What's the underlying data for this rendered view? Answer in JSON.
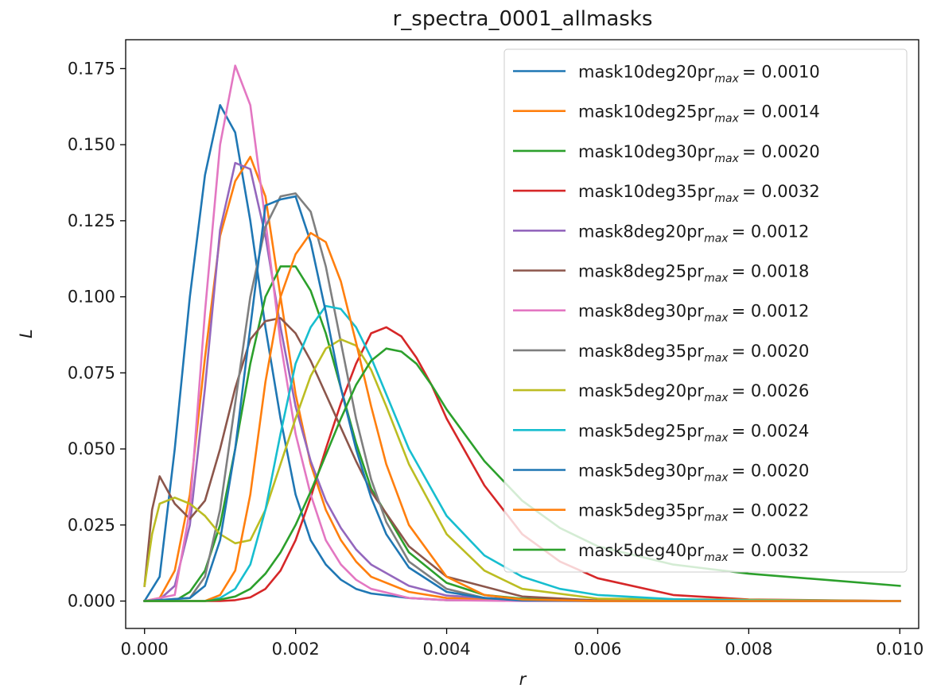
{
  "chart_data": {
    "type": "line",
    "title": "r_spectra_0001_allmasks",
    "xlabel": "r",
    "ylabel": "L",
    "xlim": [
      -0.00025,
      0.01025
    ],
    "ylim": [
      -0.009,
      0.1845
    ],
    "xticks": [
      "0.000",
      "0.002",
      "0.004",
      "0.006",
      "0.008",
      "0.010"
    ],
    "xtick_values": [
      0.0,
      0.002,
      0.004,
      0.006,
      0.008,
      0.01
    ],
    "yticks": [
      "0.000",
      "0.025",
      "0.050",
      "0.075",
      "0.100",
      "0.125",
      "0.150",
      "0.175"
    ],
    "ytick_values": [
      0.0,
      0.025,
      0.05,
      0.075,
      0.1,
      0.125,
      0.15,
      0.175
    ],
    "grid": false,
    "legend_position": "top-right",
    "series": [
      {
        "name": "mask10deg20p",
        "rmax": "= 0.0010",
        "color": "#1f77b4",
        "x": [
          0,
          0.0002,
          0.0004,
          0.0006,
          0.0008,
          0.001,
          0.0012,
          0.0014,
          0.0016,
          0.0018,
          0.002,
          0.0022,
          0.0024,
          0.0026,
          0.0028,
          0.003,
          0.0035,
          0.004,
          0.006,
          0.01
        ],
        "y": [
          0.0,
          0.008,
          0.05,
          0.1,
          0.14,
          0.163,
          0.154,
          0.125,
          0.09,
          0.06,
          0.035,
          0.02,
          0.012,
          0.007,
          0.004,
          0.0025,
          0.001,
          0.0003,
          0.0,
          0.0
        ]
      },
      {
        "name": "mask10deg25p",
        "rmax": "= 0.0014",
        "color": "#ff7f0e",
        "x": [
          0,
          0.0002,
          0.0004,
          0.0006,
          0.0008,
          0.001,
          0.0012,
          0.0014,
          0.0016,
          0.0018,
          0.002,
          0.0022,
          0.0024,
          0.0026,
          0.0028,
          0.003,
          0.0035,
          0.004,
          0.006,
          0.01
        ],
        "y": [
          0.0,
          0.001,
          0.01,
          0.035,
          0.08,
          0.12,
          0.138,
          0.146,
          0.133,
          0.1,
          0.068,
          0.045,
          0.03,
          0.02,
          0.013,
          0.008,
          0.003,
          0.001,
          0.0,
          0.0
        ]
      },
      {
        "name": "mask10deg30p",
        "rmax": "= 0.0020",
        "color": "#2ca02c",
        "x": [
          0,
          0.0004,
          0.0006,
          0.0008,
          0.001,
          0.0012,
          0.0014,
          0.0016,
          0.0018,
          0.002,
          0.0022,
          0.0024,
          0.0026,
          0.0028,
          0.003,
          0.0035,
          0.004,
          0.0045,
          0.005,
          0.006,
          0.01
        ],
        "y": [
          0.0,
          0.0,
          0.003,
          0.01,
          0.025,
          0.05,
          0.078,
          0.1,
          0.11,
          0.11,
          0.102,
          0.088,
          0.07,
          0.052,
          0.037,
          0.016,
          0.006,
          0.002,
          0.0008,
          0.0001,
          0.0
        ]
      },
      {
        "name": "mask10deg35p",
        "rmax": "= 0.0032",
        "color": "#d62728",
        "x": [
          0,
          0.0008,
          0.001,
          0.0012,
          0.0014,
          0.0016,
          0.0018,
          0.002,
          0.0022,
          0.0024,
          0.0026,
          0.0028,
          0.003,
          0.0032,
          0.0034,
          0.0036,
          0.0038,
          0.004,
          0.0045,
          0.005,
          0.0055,
          0.006,
          0.007,
          0.008,
          0.01
        ],
        "y": [
          0.0,
          0.0,
          0.0,
          0.0003,
          0.0012,
          0.004,
          0.01,
          0.02,
          0.034,
          0.05,
          0.065,
          0.078,
          0.088,
          0.09,
          0.087,
          0.08,
          0.071,
          0.06,
          0.038,
          0.022,
          0.013,
          0.0075,
          0.002,
          0.0005,
          0.0
        ]
      },
      {
        "name": "mask8deg20p",
        "rmax": "= 0.0012",
        "color": "#9467bd",
        "x": [
          0,
          0.0002,
          0.0004,
          0.0006,
          0.0008,
          0.001,
          0.0012,
          0.0014,
          0.0016,
          0.0018,
          0.002,
          0.0022,
          0.0024,
          0.0026,
          0.0028,
          0.003,
          0.0035,
          0.004,
          0.005,
          0.006,
          0.01
        ],
        "y": [
          0.0,
          0.0005,
          0.005,
          0.025,
          0.07,
          0.122,
          0.144,
          0.142,
          0.12,
          0.09,
          0.064,
          0.046,
          0.033,
          0.024,
          0.017,
          0.012,
          0.005,
          0.0018,
          0.0003,
          0.0,
          0.0
        ]
      },
      {
        "name": "mask8deg25p",
        "rmax": "= 0.0018",
        "color": "#8c564b",
        "x": [
          0,
          0.0001,
          0.0002,
          0.0004,
          0.0006,
          0.0008,
          0.001,
          0.0012,
          0.0014,
          0.0016,
          0.0018,
          0.002,
          0.0022,
          0.0024,
          0.0026,
          0.0028,
          0.003,
          0.0035,
          0.004,
          0.005,
          0.006,
          0.01
        ],
        "y": [
          0.005,
          0.03,
          0.041,
          0.032,
          0.027,
          0.033,
          0.05,
          0.07,
          0.086,
          0.092,
          0.093,
          0.088,
          0.079,
          0.068,
          0.057,
          0.046,
          0.036,
          0.018,
          0.008,
          0.0015,
          0.0002,
          0.0
        ]
      },
      {
        "name": "mask8deg30p",
        "rmax": "= 0.0012",
        "color": "#e377c2",
        "x": [
          0,
          0.0004,
          0.0006,
          0.0008,
          0.001,
          0.0012,
          0.0014,
          0.0016,
          0.0018,
          0.002,
          0.0022,
          0.0024,
          0.0026,
          0.0028,
          0.003,
          0.0035,
          0.004,
          0.005,
          0.006,
          0.01
        ],
        "y": [
          0.0,
          0.002,
          0.03,
          0.095,
          0.15,
          0.176,
          0.163,
          0.125,
          0.085,
          0.055,
          0.035,
          0.02,
          0.012,
          0.007,
          0.004,
          0.001,
          0.0003,
          0.0,
          0.0,
          0.0
        ]
      },
      {
        "name": "mask8deg35p",
        "rmax": "= 0.0020",
        "color": "#7f7f7f",
        "x": [
          0,
          0.0006,
          0.0008,
          0.001,
          0.0012,
          0.0014,
          0.0016,
          0.0018,
          0.002,
          0.0022,
          0.0024,
          0.0026,
          0.0028,
          0.003,
          0.0032,
          0.0035,
          0.004,
          0.0045,
          0.005,
          0.006,
          0.01
        ],
        "y": [
          0.0,
          0.001,
          0.008,
          0.03,
          0.065,
          0.1,
          0.123,
          0.133,
          0.134,
          0.128,
          0.11,
          0.085,
          0.06,
          0.04,
          0.026,
          0.013,
          0.004,
          0.001,
          0.0003,
          0.0,
          0.0
        ]
      },
      {
        "name": "mask5deg20p",
        "rmax": "= 0.0026",
        "color": "#bcbd22",
        "x": [
          0,
          0.0001,
          0.0002,
          0.0004,
          0.0006,
          0.0008,
          0.001,
          0.0012,
          0.0014,
          0.0016,
          0.0018,
          0.002,
          0.0022,
          0.0024,
          0.0026,
          0.0028,
          0.003,
          0.0032,
          0.0035,
          0.004,
          0.0045,
          0.005,
          0.006,
          0.01
        ],
        "y": [
          0.005,
          0.022,
          0.032,
          0.034,
          0.032,
          0.028,
          0.022,
          0.019,
          0.02,
          0.03,
          0.045,
          0.06,
          0.074,
          0.083,
          0.086,
          0.084,
          0.076,
          0.064,
          0.045,
          0.022,
          0.01,
          0.004,
          0.0008,
          0.0
        ]
      },
      {
        "name": "mask5deg25p",
        "rmax": "= 0.0024",
        "color": "#17becf",
        "x": [
          0,
          0.0008,
          0.001,
          0.0012,
          0.0014,
          0.0016,
          0.0018,
          0.002,
          0.0022,
          0.0024,
          0.0026,
          0.0028,
          0.003,
          0.0032,
          0.0035,
          0.004,
          0.0045,
          0.005,
          0.0055,
          0.006,
          0.007,
          0.008,
          0.01
        ],
        "y": [
          0.0,
          0.0,
          0.001,
          0.004,
          0.012,
          0.03,
          0.055,
          0.078,
          0.09,
          0.097,
          0.096,
          0.09,
          0.08,
          0.068,
          0.05,
          0.028,
          0.015,
          0.008,
          0.004,
          0.002,
          0.0006,
          0.0002,
          0.0
        ]
      },
      {
        "name": "mask5deg30p",
        "rmax": "= 0.0020",
        "color": "#1f77b4",
        "x": [
          0,
          0.0006,
          0.0008,
          0.001,
          0.0012,
          0.0014,
          0.0016,
          0.0018,
          0.002,
          0.0022,
          0.0024,
          0.0026,
          0.0028,
          0.003,
          0.0032,
          0.0035,
          0.004,
          0.0045,
          0.005,
          0.006,
          0.01
        ],
        "y": [
          0.0,
          0.001,
          0.005,
          0.02,
          0.05,
          0.09,
          0.13,
          0.132,
          0.133,
          0.118,
          0.095,
          0.07,
          0.05,
          0.034,
          0.022,
          0.011,
          0.003,
          0.001,
          0.0002,
          0.0,
          0.0
        ]
      },
      {
        "name": "mask5deg35p",
        "rmax": "= 0.0022",
        "color": "#ff7f0e",
        "x": [
          0,
          0.0008,
          0.001,
          0.0012,
          0.0014,
          0.0016,
          0.0018,
          0.002,
          0.0022,
          0.0024,
          0.0026,
          0.0028,
          0.003,
          0.0032,
          0.0035,
          0.004,
          0.0045,
          0.005,
          0.006,
          0.01
        ],
        "y": [
          0.0,
          0.0,
          0.002,
          0.01,
          0.035,
          0.072,
          0.1,
          0.114,
          0.121,
          0.118,
          0.105,
          0.085,
          0.064,
          0.045,
          0.025,
          0.008,
          0.002,
          0.0005,
          0.0,
          0.0
        ]
      },
      {
        "name": "mask5deg40p",
        "rmax": "= 0.0032",
        "color": "#2ca02c",
        "x": [
          0,
          0.0008,
          0.001,
          0.0012,
          0.0014,
          0.0016,
          0.0018,
          0.002,
          0.0022,
          0.0024,
          0.0026,
          0.0028,
          0.003,
          0.0032,
          0.0034,
          0.0036,
          0.0038,
          0.004,
          0.0045,
          0.005,
          0.0055,
          0.006,
          0.007,
          0.008,
          0.009,
          0.01
        ],
        "y": [
          0.0,
          0.0,
          0.0005,
          0.0015,
          0.004,
          0.009,
          0.016,
          0.025,
          0.036,
          0.048,
          0.06,
          0.071,
          0.079,
          0.083,
          0.082,
          0.078,
          0.071,
          0.063,
          0.046,
          0.033,
          0.024,
          0.018,
          0.012,
          0.009,
          0.007,
          0.005
        ]
      }
    ]
  }
}
